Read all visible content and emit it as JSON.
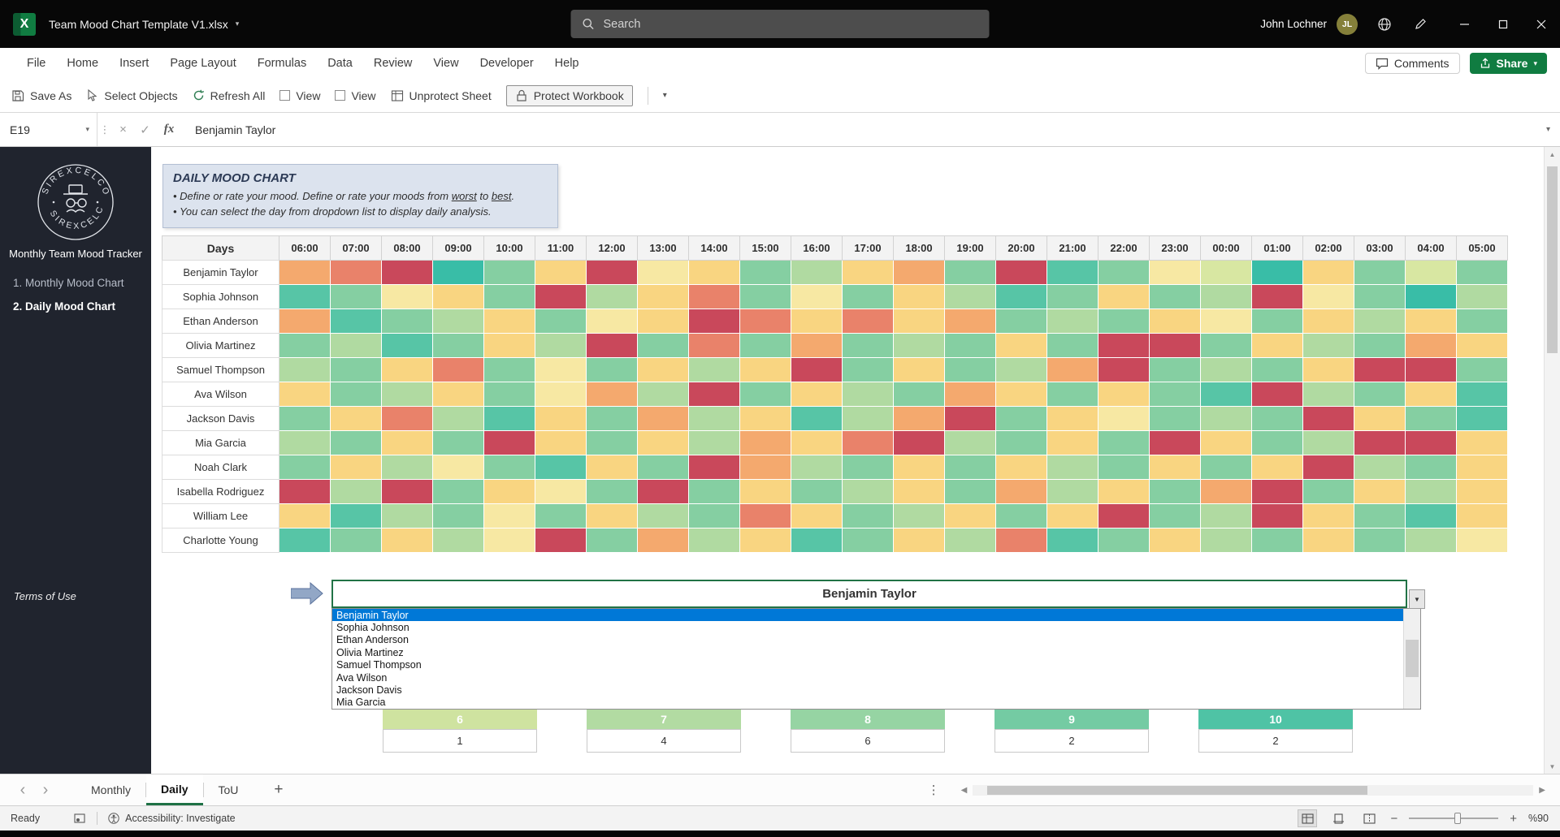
{
  "titlebar": {
    "file_name": "Team Mood Chart Template V1.xlsx",
    "search_placeholder": "Search",
    "user_name": "John Lochner",
    "user_initials": "JL"
  },
  "ribbon": {
    "tabs": [
      "File",
      "Home",
      "Insert",
      "Page Layout",
      "Formulas",
      "Data",
      "Review",
      "View",
      "Developer",
      "Help"
    ],
    "comments_label": "Comments",
    "share_label": "Share"
  },
  "toolbar": {
    "save_as": "Save As",
    "select_objects": "Select Objects",
    "refresh_all": "Refresh All",
    "view1": "View",
    "view2": "View",
    "unprotect_sheet": "Unprotect Sheet",
    "protect_workbook": "Protect Workbook"
  },
  "formula_bar": {
    "name_box": "E19",
    "fx": "fx",
    "content": "Benjamin Taylor"
  },
  "sidebar": {
    "brand": "SIREXCELCO",
    "tracker_title": "Monthly Team Mood Tracker",
    "nav": [
      {
        "label": "1. Monthly Mood Chart",
        "active": false
      },
      {
        "label": "2. Daily Mood Chart",
        "active": true
      }
    ],
    "terms_label": "Terms of Use"
  },
  "info_box": {
    "title": "DAILY MOOD CHART",
    "bullet1_pre": "Define or rate your mood. Define or rate your moods from ",
    "bullet1_worst": "worst",
    "bullet1_mid": " to ",
    "bullet1_best": "best",
    "bullet1_post": ".",
    "bullet2": "You can select the day from dropdown list to display daily analysis."
  },
  "chart_data": {
    "type": "heatmap",
    "title": "Daily Mood Chart",
    "row_header": "Days",
    "columns": [
      "06:00",
      "07:00",
      "08:00",
      "09:00",
      "10:00",
      "11:00",
      "12:00",
      "13:00",
      "14:00",
      "15:00",
      "16:00",
      "17:00",
      "18:00",
      "19:00",
      "20:00",
      "21:00",
      "22:00",
      "23:00",
      "00:00",
      "01:00",
      "02:00",
      "03:00",
      "04:00",
      "05:00"
    ],
    "rows": [
      "Benjamin Taylor",
      "Sophia Johnson",
      "Ethan Anderson",
      "Olivia Martinez",
      "Samuel Thompson",
      "Ava Wilson",
      "Jackson Davis",
      "Mia Garcia",
      "Noah Clark",
      "Isabella Rodriguez",
      "William Lee",
      "Charlotte Young"
    ],
    "palette": [
      "#c9485b",
      "#e9826a",
      "#f4a96e",
      "#f9d581",
      "#f7e8a3",
      "#d8e7a2",
      "#b0daa1",
      "#85cfa2",
      "#57c5a6",
      "#39bda7"
    ],
    "cells": [
      "210973043763270874593757",
      "874370631747368737604796",
      "287637430131327673473637",
      "768736071727673700736723",
      "673174736307376207673007",
      "376374260736723737806738",
      "731683726386207347670378",
      "673703736231067370376003",
      "736478370267373673730673",
      "060734707376372637207363",
      "386747367137637307603783",
      "873640726387361873673764"
    ]
  },
  "day_selector": {
    "selected": "Benjamin Taylor",
    "options": [
      "Benjamin Taylor",
      "Sophia Johnson",
      "Ethan Anderson",
      "Olivia Martinez",
      "Samuel Thompson",
      "Ava Wilson",
      "Jackson Davis",
      "Mia Garcia"
    ]
  },
  "summary": {
    "scale_values": [
      "6",
      "7",
      "8",
      "9",
      "10"
    ],
    "scale_colors": [
      "#cfe3a0",
      "#b2dba2",
      "#96d4a3",
      "#74cba3",
      "#4fc3a5"
    ],
    "counts": [
      "1",
      "4",
      "6",
      "2",
      "2"
    ]
  },
  "sheet_tabs": {
    "tabs": [
      {
        "label": "Monthly",
        "active": false
      },
      {
        "label": "Daily",
        "active": true
      },
      {
        "label": "ToU",
        "active": false
      }
    ],
    "add_label": "+"
  },
  "status_bar": {
    "ready": "Ready",
    "accessibility": "Accessibility: Investigate",
    "zoom": "%90"
  }
}
